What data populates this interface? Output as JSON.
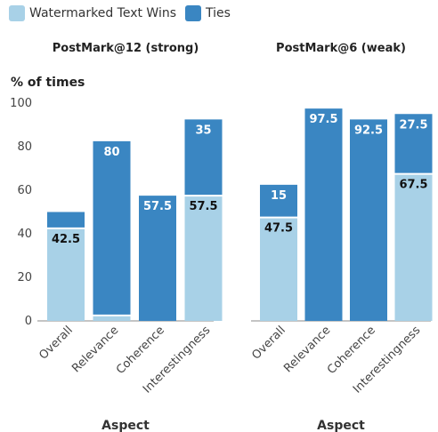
{
  "chart_data": {
    "type": "bar",
    "stacked": true,
    "legend": {
      "placement": "top-left",
      "entries": [
        {
          "name": "Watermarked Text Wins",
          "color": "#a8d1e7"
        },
        {
          "name": "Ties",
          "color": "#3a86c2"
        }
      ]
    },
    "ylabel": "% of times",
    "ylim": [
      0,
      100
    ],
    "yticks": [
      "0",
      "20",
      "40",
      "60",
      "80",
      "100"
    ],
    "grid": false,
    "panels": [
      {
        "title": "PostMark@12 (strong)",
        "xlabel": "Aspect",
        "categories": [
          "Overall",
          "Relevance",
          "Coherence",
          "Interestingness"
        ],
        "series": [
          {
            "name": "Watermarked Text Wins",
            "values": [
              42.5,
              2.5,
              0,
              57.5
            ],
            "labels": [
              "42.5",
              "",
              "",
              "57.5"
            ]
          },
          {
            "name": "Ties",
            "values": [
              7.5,
              80,
              57.5,
              35
            ],
            "labels": [
              "",
              "80",
              "57.5",
              "35"
            ]
          }
        ]
      },
      {
        "title": "PostMark@6 (weak)",
        "xlabel": "Aspect",
        "categories": [
          "Overall",
          "Relevance",
          "Coherence",
          "Interestingness"
        ],
        "series": [
          {
            "name": "Watermarked Text Wins",
            "values": [
              47.5,
              0,
              0,
              67.5
            ],
            "labels": [
              "47.5",
              "",
              "",
              "67.5"
            ]
          },
          {
            "name": "Ties",
            "values": [
              15,
              97.5,
              92.5,
              27.5
            ],
            "labels": [
              "15",
              "97.5",
              "92.5",
              "27.5"
            ]
          }
        ]
      }
    ]
  }
}
